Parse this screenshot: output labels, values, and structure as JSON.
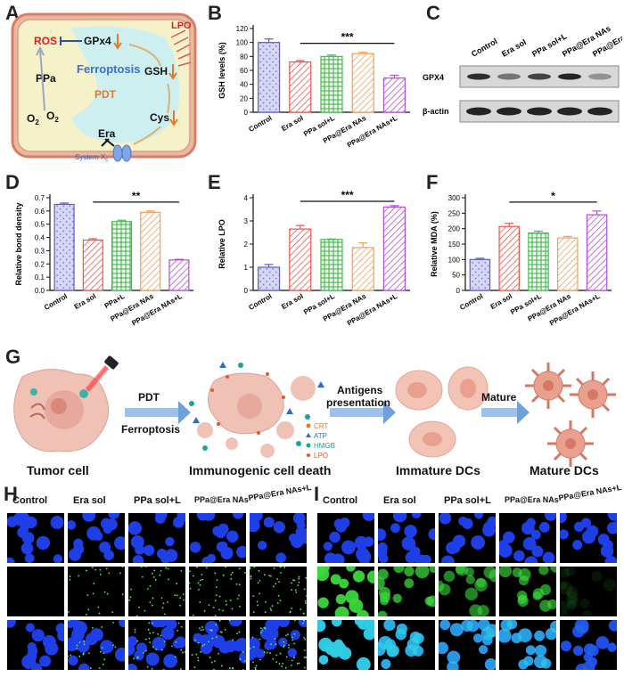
{
  "panels": {
    "A": "A",
    "B": "B",
    "C": "C",
    "D": "D",
    "E": "E",
    "F": "F",
    "G": "G",
    "H": "H",
    "I": "I"
  },
  "groups": [
    "Control",
    "Era sol",
    "PPa sol+L",
    "PPa@Era NAs",
    "PPa@Era NAs+L"
  ],
  "colors": {
    "control": "#5b5bd6",
    "era": "#e8584e",
    "ppa": "#3fbf4a",
    "nas": "#f0a15a",
    "nasl": "#b44fd8",
    "red": "#e02020",
    "cyan": "#cdeff0",
    "yellow": "#f6f3c8",
    "orange": "#e07b2a",
    "blue_arrow": "#6fa0d8"
  },
  "panel_a": {
    "labels": {
      "lpo": "LPO",
      "ros": "ROS",
      "gpx4": "GPx4",
      "ppa": "PPa",
      "ferroptosis": "Ferroptosis",
      "pdt": "PDT",
      "gsh": "GSH",
      "cys": "Cys",
      "o2_left": "O",
      "o2_left_sub": "2",
      "o2_right": "O",
      "o2_right_sub": "2",
      "era": "Era",
      "system": "System X",
      "system_sub": "c"
    }
  },
  "panel_c": {
    "lanes": [
      "Control",
      "Era sol",
      "PPa sol+L",
      "PPa@Era NAs",
      "PPa@Era NAs+L"
    ],
    "rows": [
      "GPX4",
      "β-actin"
    ],
    "gpx4_intensity": [
      0.85,
      0.5,
      0.75,
      0.9,
      0.35
    ],
    "actin_intensity": [
      0.9,
      0.9,
      0.9,
      0.9,
      0.9
    ]
  },
  "chart_data": [
    {
      "panel": "B",
      "type": "bar",
      "categories": [
        "Control",
        "Era sol",
        "PPa sol+L",
        "PPa@Era NAs",
        "PPa@Era NAs+L"
      ],
      "values": [
        100,
        72,
        80,
        84,
        49
      ],
      "errors": [
        5,
        2,
        2,
        2,
        4
      ],
      "ylabel": "GSH levels (%)",
      "ylim": [
        0,
        120
      ],
      "yticks": [
        0,
        20,
        40,
        60,
        80,
        100,
        120
      ],
      "significance": "***",
      "sig_from": 1,
      "sig_to": 4
    },
    {
      "panel": "D",
      "type": "bar",
      "categories": [
        "Control",
        "Era sol",
        "PPa+L",
        "PPa@Era NAs",
        "PPa@Era NAs+L"
      ],
      "values": [
        0.65,
        0.38,
        0.52,
        0.59,
        0.23
      ],
      "errors": [
        0.01,
        0.01,
        0.01,
        0.01,
        0.005
      ],
      "ylabel": "Relative bond density",
      "ylim": [
        0,
        0.7
      ],
      "yticks": [
        0.0,
        0.1,
        0.2,
        0.3,
        0.4,
        0.5,
        0.6,
        0.7
      ],
      "significance": "**",
      "sig_from": 1,
      "sig_to": 4
    },
    {
      "panel": "E",
      "type": "bar",
      "categories": [
        "Control",
        "Era sol",
        "PPa sol+L",
        "PPa@Era NAs",
        "PPa@Era NAs+L"
      ],
      "values": [
        1.0,
        2.65,
        2.2,
        1.85,
        3.6
      ],
      "errors": [
        0.12,
        0.15,
        0.02,
        0.2,
        0.06
      ],
      "ylabel": "Relative LPO",
      "ylim": [
        0,
        4
      ],
      "yticks": [
        0,
        1,
        2,
        3,
        4
      ],
      "significance": "***",
      "sig_from": 1,
      "sig_to": 4
    },
    {
      "panel": "F",
      "type": "bar",
      "categories": [
        "Control",
        "Era sol",
        "PPa sol+L",
        "PPa@Era NAs",
        "PPa@Era NAs+L"
      ],
      "values": [
        100,
        207,
        186,
        170,
        245
      ],
      "errors": [
        4,
        10,
        6,
        5,
        12
      ],
      "ylabel": "Relative MDA (%)",
      "ylim": [
        0,
        300
      ],
      "yticks": [
        0,
        50,
        100,
        150,
        200,
        250,
        300
      ],
      "significance": "*",
      "sig_from": 1,
      "sig_to": 4
    }
  ],
  "panel_g": {
    "pdt": "PDT",
    "ferroptosis": "Ferroptosis",
    "antigens": "Antigens",
    "presentation": "presentation",
    "mature": "Mature",
    "legend": [
      {
        "label": "CRT",
        "color": "#e07b2a"
      },
      {
        "label": "ATP",
        "color": "#2f6fc2"
      },
      {
        "label": "HMGB",
        "color": "#19a39a"
      },
      {
        "label": "LPO",
        "color": "#e05a2a"
      }
    ],
    "captions": [
      "Tumor cell",
      "Immunogenic cell death",
      "Immature DCs",
      "Mature DCs"
    ]
  },
  "panel_h": {
    "labels": [
      "Control",
      "Era sol",
      "PPa sol+L",
      "PPa@Era NAs",
      "PPa@Era NAs+L"
    ],
    "green_density": [
      0,
      0.4,
      0.6,
      0.7,
      0.9
    ]
  },
  "panel_i": {
    "labels": [
      "Control",
      "Era sol",
      "PPa sol+L",
      "PPa@Era NAs",
      "PPa@Era NAs+L"
    ],
    "green_density": [
      0.95,
      0.75,
      0.6,
      0.65,
      0.1
    ]
  }
}
